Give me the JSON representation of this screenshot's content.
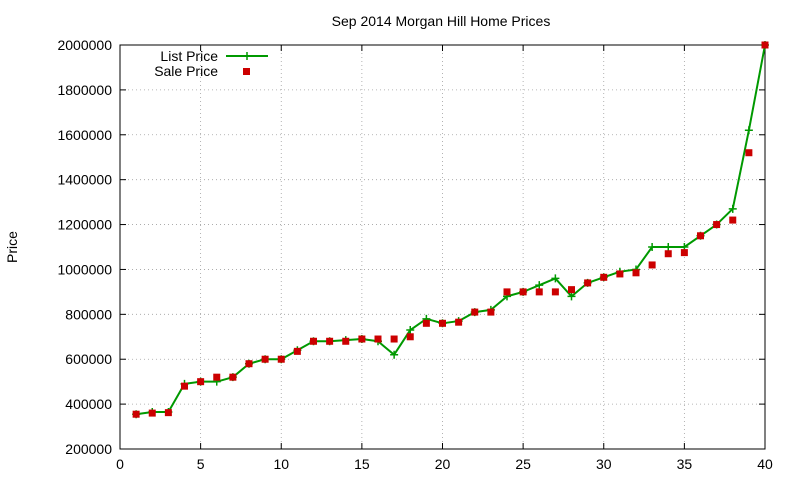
{
  "chart_data": {
    "type": "line",
    "title": "Sep 2014 Morgan Hill Home Prices",
    "xlabel": "",
    "ylabel": "Price",
    "xlim": [
      0,
      40
    ],
    "ylim": [
      200000,
      2000000
    ],
    "x_ticks": [
      0,
      5,
      10,
      15,
      20,
      25,
      30,
      35,
      40
    ],
    "y_ticks": [
      200000,
      400000,
      600000,
      800000,
      1000000,
      1200000,
      1400000,
      1600000,
      1800000,
      2000000
    ],
    "grid": true,
    "legend_position": "top-left",
    "x": [
      1,
      2,
      3,
      4,
      5,
      6,
      7,
      8,
      9,
      10,
      11,
      12,
      13,
      14,
      15,
      16,
      17,
      18,
      19,
      20,
      21,
      22,
      23,
      24,
      25,
      26,
      27,
      28,
      29,
      30,
      31,
      32,
      33,
      34,
      35,
      36,
      37,
      38,
      39,
      40
    ],
    "series": [
      {
        "name": "List Price",
        "style": "line-plus",
        "color": "#009900",
        "values": [
          355000,
          365000,
          365000,
          490000,
          500000,
          500000,
          520000,
          580000,
          600000,
          600000,
          640000,
          680000,
          680000,
          685000,
          690000,
          680000,
          620000,
          730000,
          780000,
          760000,
          770000,
          810000,
          820000,
          880000,
          900000,
          930000,
          960000,
          880000,
          940000,
          965000,
          990000,
          1000000,
          1100000,
          1100000,
          1100000,
          1150000,
          1200000,
          1270000,
          1620000,
          2000000
        ]
      },
      {
        "name": "Sale Price",
        "style": "points-square",
        "color": "#cc0000",
        "values": [
          355000,
          360000,
          362000,
          480000,
          500000,
          520000,
          520000,
          580000,
          600000,
          600000,
          635000,
          680000,
          680000,
          680000,
          690000,
          690000,
          690000,
          700000,
          760000,
          760000,
          765000,
          810000,
          810000,
          900000,
          900000,
          900000,
          900000,
          910000,
          940000,
          965000,
          980000,
          985000,
          1020000,
          1070000,
          1075000,
          1150000,
          1200000,
          1220000,
          1520000,
          2000000
        ]
      }
    ]
  }
}
